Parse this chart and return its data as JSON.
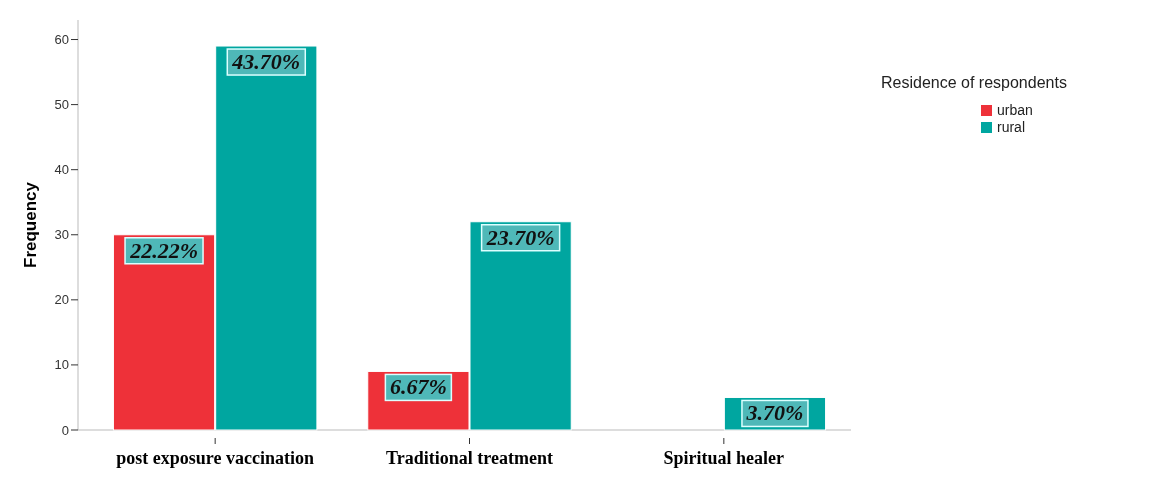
{
  "chart_data": {
    "type": "bar",
    "ylabel": "Frequency",
    "legend_title": "Residence of respondents",
    "legend": "top right",
    "categories": [
      "post exposure vaccination",
      "Traditional treatment",
      "Spiritual healer"
    ],
    "series": [
      {
        "name": "urban",
        "color": "#ee3139",
        "values": [
          30,
          9,
          null
        ]
      },
      {
        "name": "rural",
        "color": "#00a6a0",
        "values": [
          59,
          32,
          5
        ]
      }
    ],
    "annotations": [
      {
        "text": "22.22%",
        "x": "post exposure vaccination",
        "y": 30
      },
      {
        "text": "43.70%",
        "x": "post exposure vaccination",
        "y": 59
      },
      {
        "text": "6.67%",
        "x": "Traditional treatment",
        "y": 9
      },
      {
        "text": "23.70%",
        "x": "Traditional treatment",
        "y": 32
      },
      {
        "text": "3.70%",
        "x": "Spiritual healer",
        "y": 5
      }
    ],
    "ylim": [
      0,
      63
    ],
    "yticks": [
      0,
      10,
      20,
      30,
      40,
      50,
      60
    ],
    "grid": false
  }
}
